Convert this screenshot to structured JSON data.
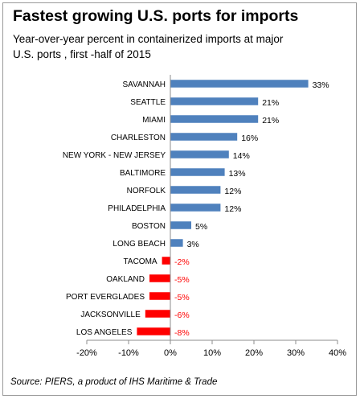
{
  "title": "Fastest growing U.S. ports for imports",
  "subtitle": "Year-over-year percent in containerized imports at major U.S. ports , first -half of 2015",
  "source": "Source:  PIERS, a product of IHS Maritime & Trade",
  "colors": {
    "positive": "#4f81bd",
    "negative": "#ff0000",
    "axis": "#8c8c8c"
  },
  "chart_data": {
    "type": "bar",
    "orientation": "horizontal",
    "categories": [
      "SAVANNAH",
      "SEATTLE",
      "MIAMI",
      "CHARLESTON",
      "NEW YORK - NEW JERSEY",
      "BALTIMORE",
      "NORFOLK",
      "PHILADELPHIA",
      "BOSTON",
      "LONG BEACH",
      "TACOMA",
      "OAKLAND",
      "PORT EVERGLADES",
      "JACKSONVILLE",
      "LOS ANGELES"
    ],
    "values": [
      33,
      21,
      21,
      16,
      14,
      13,
      12,
      12,
      5,
      3,
      -2,
      -5,
      -5,
      -6,
      -8
    ],
    "data_labels": [
      "33%",
      "21%",
      "21%",
      "16%",
      "14%",
      "13%",
      "12%",
      "12%",
      "5%",
      "3%",
      "-2%",
      "-5%",
      "-5%",
      "-6%",
      "-8%"
    ],
    "xlim": [
      -20,
      40
    ],
    "xticks": [
      -20,
      -10,
      0,
      10,
      20,
      30,
      40
    ],
    "xtick_labels": [
      "-20%",
      "-10%",
      "0%",
      "10%",
      "20%",
      "30%",
      "40%"
    ],
    "grid": false,
    "legend": "none"
  }
}
